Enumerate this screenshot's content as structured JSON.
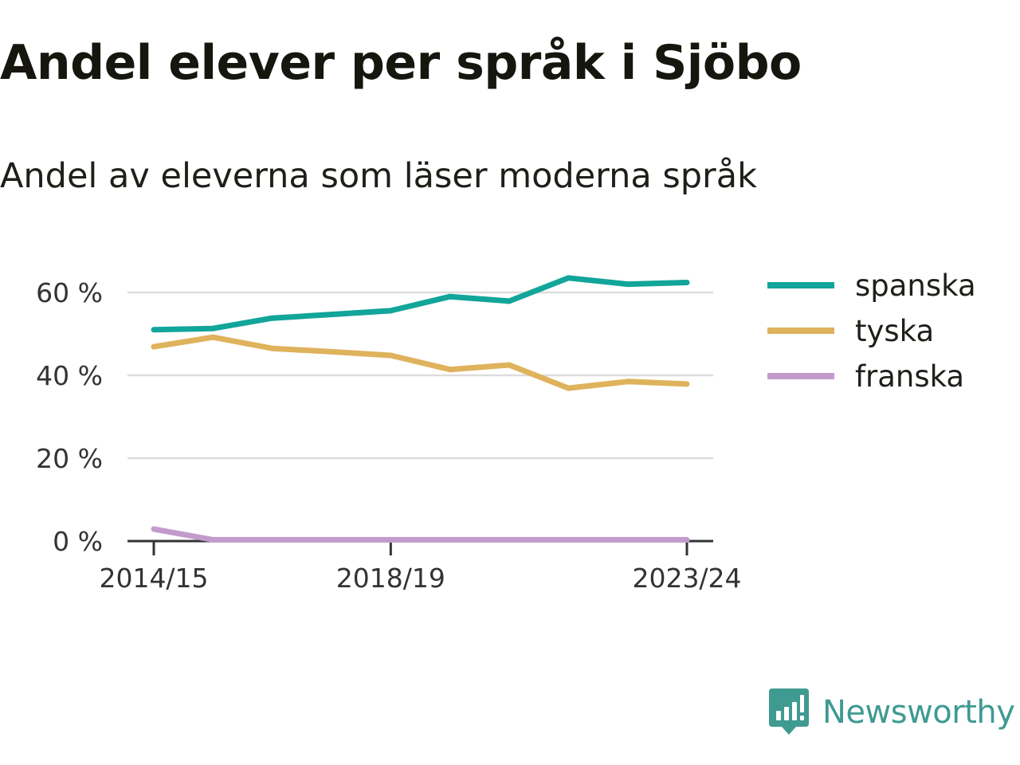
{
  "title": "Andel elever per språk i Sjöbo",
  "subtitle": "Andel av eleverna som läser moderna språk",
  "brand": {
    "name": "Newsworthy",
    "icon": "newsworthy-logo-icon",
    "color": "#3f9a91"
  },
  "chart_data": {
    "type": "line",
    "x": [
      "2014/15",
      "2015/16",
      "2016/17",
      "2017/18",
      "2018/19",
      "2019/20",
      "2020/21",
      "2021/22",
      "2022/23",
      "2023/24"
    ],
    "x_tick_labels": [
      "2014/15",
      "2018/19",
      "2023/24"
    ],
    "y_ticks": [
      0,
      20,
      40,
      60
    ],
    "y_tick_labels": [
      "0 %",
      "20 %",
      "40 %",
      "60 %"
    ],
    "ylim": [
      0,
      66
    ],
    "grid": true,
    "legend_position": "right",
    "series": [
      {
        "name": "spanska",
        "color": "#12a59a",
        "values": [
          51,
          51.3,
          53.8,
          54.7,
          55.6,
          59,
          57.9,
          63.5,
          62,
          62.4
        ]
      },
      {
        "name": "tyska",
        "color": "#dfb25c",
        "values": [
          46.9,
          49.2,
          46.5,
          45.7,
          44.8,
          41.4,
          42.5,
          36.9,
          38.5,
          37.9
        ]
      },
      {
        "name": "franska",
        "color": "#c29bcc",
        "values": [
          2.9,
          0.3,
          0.3,
          0.3,
          0.3,
          0.3,
          0.3,
          0.3,
          0.3,
          0.3
        ]
      }
    ]
  }
}
